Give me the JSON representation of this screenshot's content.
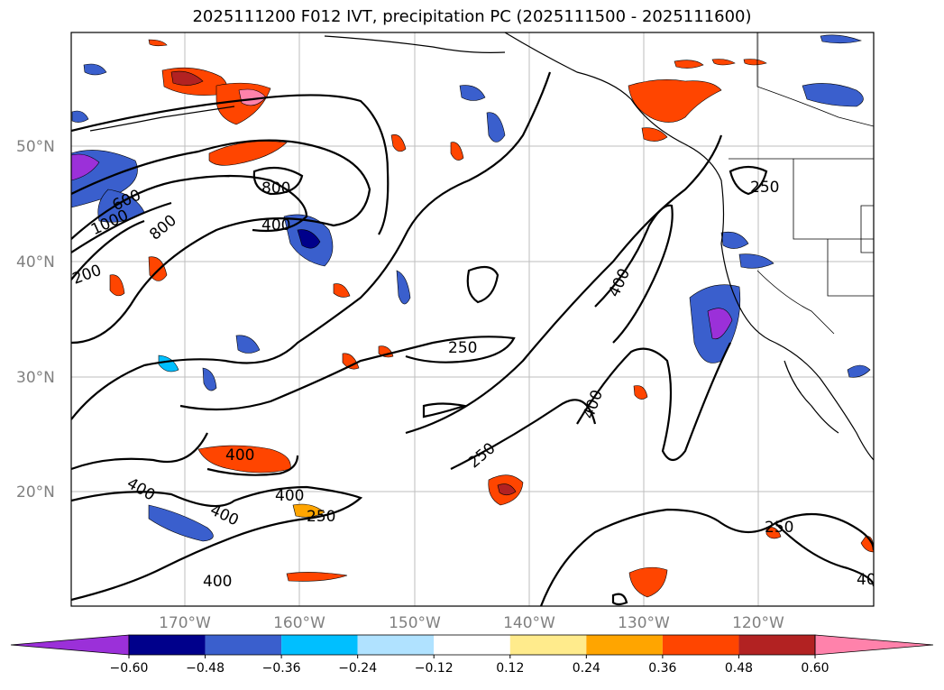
{
  "title": "2025111200 F012 IVT, precipitation PC (2025111500 - 2025111600)",
  "lat_labels": [
    "50°N",
    "40°N",
    "30°N",
    "20°N"
  ],
  "lon_labels": [
    "170°W",
    "160°W",
    "150°W",
    "140°W",
    "130°W",
    "120°W"
  ],
  "contour_labels": {
    "c800a": "800",
    "c400a": "400",
    "c800b": "800",
    "c1000": "1000",
    "c600": "600",
    "c200": "200",
    "c250a": "250",
    "c400b": "400",
    "c250b": "250",
    "c400c": "400",
    "c250c": "250",
    "c400d": "400",
    "c400e": "400",
    "c400f": "400",
    "c400g": "400",
    "c250d": "250",
    "c400h": "400",
    "c250e": "250",
    "c400i": "40"
  },
  "colorbar": {
    "ticks": [
      "−0.60",
      "−0.48",
      "−0.36",
      "−0.24",
      "−0.12",
      "0.12",
      "0.24",
      "0.36",
      "0.48",
      "0.60"
    ],
    "colors": [
      "#9b30d9",
      "#00008b",
      "#3a5fcd",
      "#00bfff",
      "#b0e2ff",
      "#ffffff",
      "#ffeb8c",
      "#ffa500",
      "#ff4500",
      "#b22222",
      "#ff82ab"
    ]
  }
}
